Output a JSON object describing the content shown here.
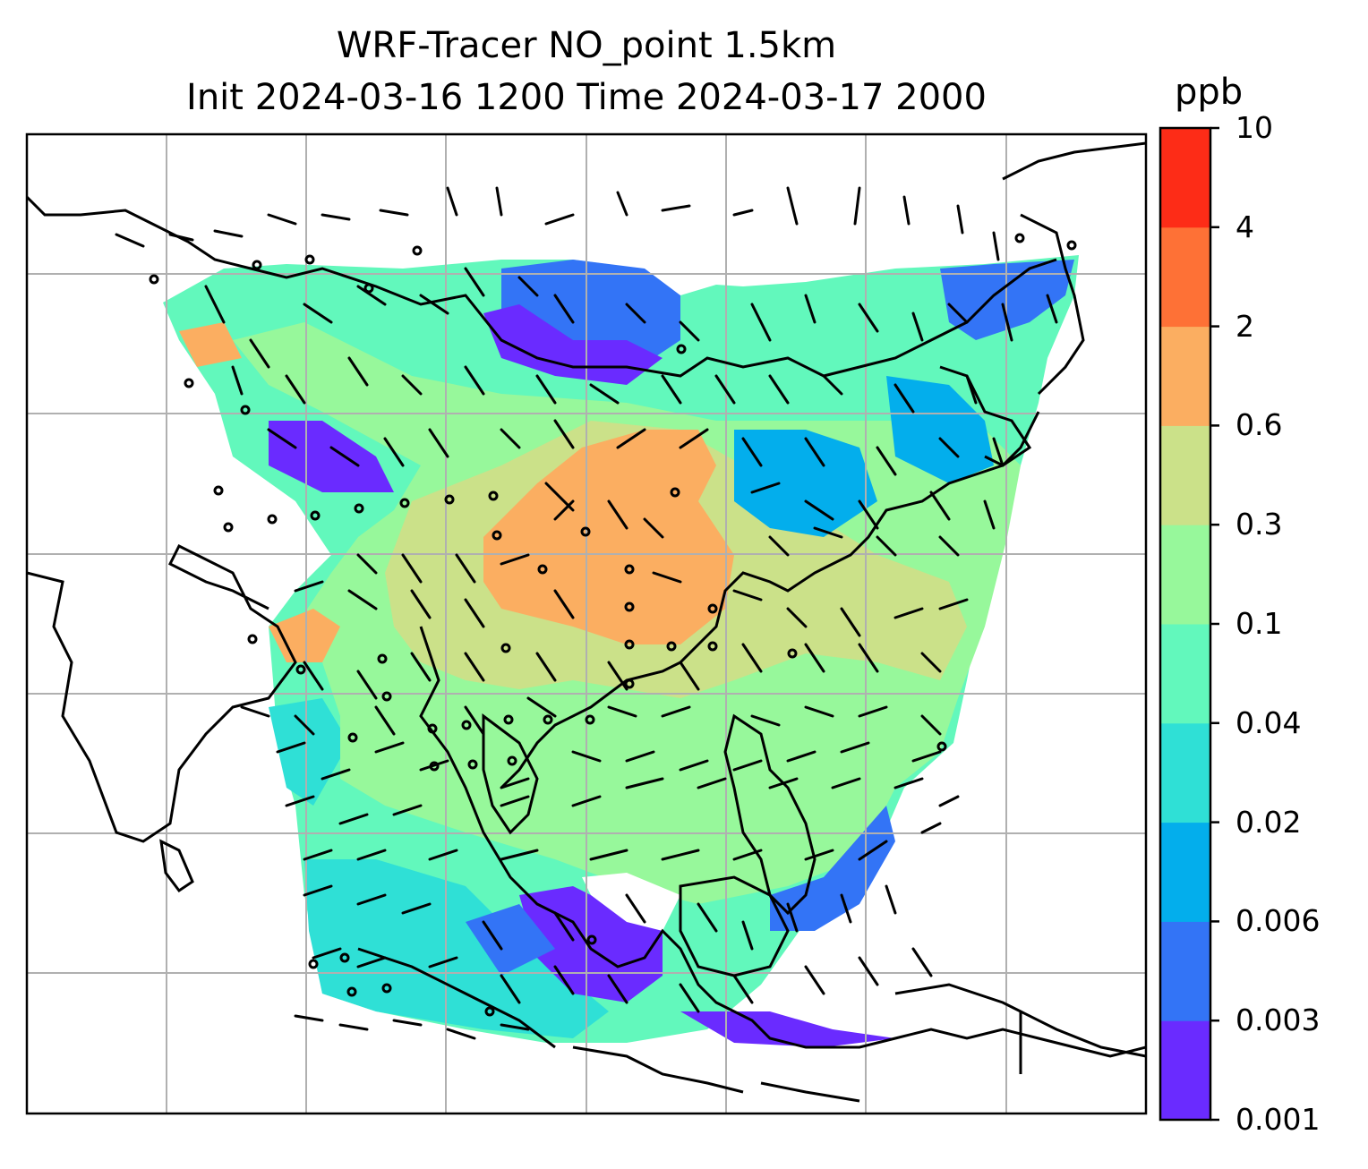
{
  "figure": {
    "title_line1": "WRF-Tracer NO_point 1.5km",
    "title_line2": "Init 2024-03-16 1200 Time 2024-03-17 2000"
  },
  "colorbar": {
    "unit": "ppb",
    "levels": [
      "0.001",
      "0.003",
      "0.006",
      "0.02",
      "0.04",
      "0.1",
      "0.3",
      "0.6",
      "2",
      "4",
      "10"
    ],
    "colors": [
      "#6a2bff",
      "#3374f6",
      "#03aeec",
      "#2fe0d6",
      "#62f8bc",
      "#97f89b",
      "#cbe189",
      "#fbae61",
      "#fe7136",
      "#fd2c17"
    ]
  },
  "map": {
    "frame_color": "#000000",
    "grid_color": "#b0b0b0",
    "coastline_color": "#000000",
    "field": "NO point-source tracer concentration",
    "overlay": "wind barbs"
  }
}
